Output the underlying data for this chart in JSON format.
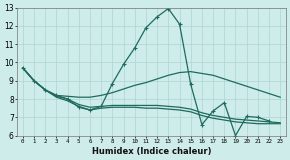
{
  "xlabel": "Humidex (Indice chaleur)",
  "ylabel": "",
  "background_color": "#ceecea",
  "line_color": "#1e6b5e",
  "grid_color": "#aed4d0",
  "xlim": [
    -0.5,
    23.5
  ],
  "ylim": [
    6,
    13
  ],
  "xticks": [
    0,
    1,
    2,
    3,
    4,
    5,
    6,
    7,
    8,
    9,
    10,
    11,
    12,
    13,
    14,
    15,
    16,
    17,
    18,
    19,
    20,
    21,
    22,
    23
  ],
  "yticks": [
    6,
    7,
    8,
    9,
    10,
    11,
    12,
    13
  ],
  "series": [
    {
      "x": [
        0,
        1,
        2,
        3,
        4,
        5,
        6,
        7,
        8,
        9,
        10,
        11,
        12,
        13,
        14,
        15,
        16,
        17,
        18,
        19,
        20,
        21,
        22
      ],
      "y": [
        9.7,
        9.0,
        8.5,
        8.2,
        8.0,
        7.55,
        7.4,
        7.6,
        8.85,
        9.9,
        10.8,
        11.9,
        12.5,
        12.95,
        12.1,
        8.8,
        6.6,
        7.35,
        7.8,
        6.0,
        7.05,
        7.0,
        6.8
      ],
      "has_markers": true
    },
    {
      "x": [
        0,
        1,
        2,
        3,
        4,
        5,
        6,
        7,
        8,
        9,
        10,
        11,
        12,
        13,
        14,
        15,
        16,
        17,
        18,
        19,
        20,
        21,
        22,
        23
      ],
      "y": [
        9.7,
        9.0,
        8.5,
        8.2,
        8.15,
        8.1,
        8.1,
        8.2,
        8.35,
        8.55,
        8.75,
        8.9,
        9.1,
        9.3,
        9.45,
        9.5,
        9.4,
        9.3,
        9.1,
        8.9,
        8.7,
        8.5,
        8.3,
        8.1
      ],
      "has_markers": false
    },
    {
      "x": [
        0,
        1,
        2,
        3,
        4,
        5,
        6,
        7,
        8,
        9,
        10,
        11,
        12,
        13,
        14,
        15,
        16,
        17,
        18,
        19,
        20,
        21,
        22,
        23
      ],
      "y": [
        9.7,
        9.0,
        8.5,
        8.15,
        8.0,
        7.7,
        7.55,
        7.6,
        7.65,
        7.65,
        7.65,
        7.65,
        7.65,
        7.6,
        7.55,
        7.45,
        7.25,
        7.1,
        7.0,
        6.9,
        6.85,
        6.8,
        6.75,
        6.7
      ],
      "has_markers": false
    },
    {
      "x": [
        0,
        1,
        2,
        3,
        4,
        5,
        6,
        7,
        8,
        9,
        10,
        11,
        12,
        13,
        14,
        15,
        16,
        17,
        18,
        19,
        20,
        21,
        22,
        23
      ],
      "y": [
        9.7,
        9.0,
        8.5,
        8.1,
        7.9,
        7.6,
        7.4,
        7.5,
        7.55,
        7.55,
        7.55,
        7.5,
        7.5,
        7.45,
        7.4,
        7.3,
        7.1,
        6.95,
        6.85,
        6.75,
        6.7,
        6.65,
        6.65,
        6.65
      ],
      "has_markers": false
    }
  ]
}
